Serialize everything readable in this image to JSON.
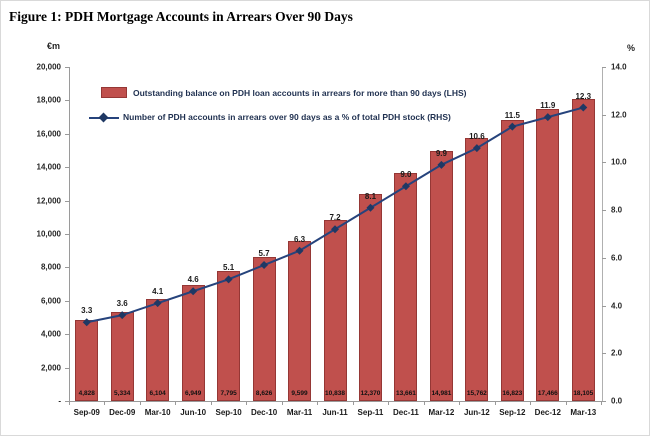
{
  "title": "Figure 1: PDH Mortgage Accounts in Arrears Over 90 Days",
  "colors": {
    "bar_fill": "#c0504d",
    "bar_border": "#953735",
    "line": "#26437c",
    "marker": "#1f3864",
    "axis": "#9a9a9a",
    "legend_text": "#1f3050"
  },
  "chart_data": {
    "type": "bar",
    "subtype": "combo-bar-line",
    "title": "Figure 1: PDH Mortgage Accounts in Arrears Over 90 Days",
    "categories": [
      "Sep-09",
      "Dec-09",
      "Mar-10",
      "Jun-10",
      "Sep-10",
      "Dec-10",
      "Mar-11",
      "Jun-11",
      "Sep-11",
      "Dec-11",
      "Mar-12",
      "Jun-12",
      "Sep-12",
      "Dec-12",
      "Mar-13"
    ],
    "series": [
      {
        "name": "Outstanding balance on PDH loan accounts in arrears for more than 90 days (LHS)",
        "type": "bar",
        "axis": "left",
        "values": [
          4828,
          5334,
          6104,
          6949,
          7795,
          8626,
          9599,
          10838,
          12370,
          13661,
          14981,
          15762,
          16823,
          17466,
          18105
        ],
        "value_labels": [
          "4,828",
          "5,334",
          "6,104",
          "6,949",
          "7,795",
          "8,626",
          "9,599",
          "10,838",
          "12,370",
          "13,661",
          "14,981",
          "15,762",
          "16,823",
          "17,466",
          "18,105"
        ]
      },
      {
        "name": "Number of PDH accounts in arrears over 90 days as a % of total PDH stock (RHS)",
        "type": "line",
        "axis": "right",
        "values": [
          3.3,
          3.6,
          4.1,
          4.6,
          5.1,
          5.7,
          6.3,
          7.2,
          8.1,
          9.0,
          9.9,
          10.6,
          11.5,
          11.9,
          12.3
        ],
        "value_labels": [
          "3.3",
          "3.6",
          "4.1",
          "4.6",
          "5.1",
          "5.7",
          "6.3",
          "7.2",
          "8.1",
          "9.0",
          "9.9",
          "10.6",
          "11.5",
          "11.9",
          "12.3"
        ]
      }
    ],
    "left_axis": {
      "unit": "€m",
      "min": 0,
      "max": 20000,
      "step": 2000,
      "tick_labels": [
        "20,000",
        "18,000",
        "16,000",
        "14,000",
        "12,000",
        "10,000",
        "8,000",
        "6,000",
        "4,000",
        "2,000",
        "-"
      ]
    },
    "right_axis": {
      "unit": "%",
      "min": 0,
      "max": 14,
      "step": 2,
      "tick_labels": [
        "14.0",
        "12.0",
        "10.0",
        "8.0",
        "6.0",
        "4.0",
        "2.0",
        "0.0"
      ]
    },
    "legend_position": "top-left-inside",
    "grid": false
  }
}
